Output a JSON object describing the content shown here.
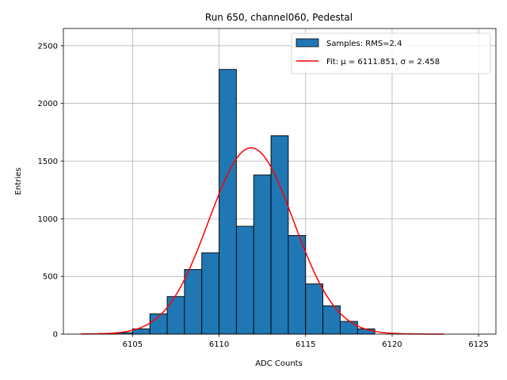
{
  "chart_data": {
    "type": "bar",
    "title": "Run 650, channel060, Pedestal",
    "xlabel": "ADC Counts",
    "ylabel": "Entries",
    "xlim": [
      6101,
      6126
    ],
    "ylim": [
      0,
      2650
    ],
    "xticks": [
      6105,
      6110,
      6115,
      6120,
      6125
    ],
    "yticks": [
      0,
      500,
      1000,
      1500,
      2000,
      2500
    ],
    "grid": true,
    "legend_position": "top-right",
    "histogram": {
      "name": "Samples: RMS=2.4",
      "color": "#1f77b4",
      "bin_edges": [
        6103,
        6104,
        6105,
        6106,
        6107,
        6108,
        6109,
        6110,
        6111,
        6112,
        6113,
        6114,
        6115,
        6116,
        6117,
        6118,
        6119
      ],
      "values": [
        5,
        12,
        45,
        175,
        325,
        560,
        705,
        2295,
        935,
        1380,
        1720,
        855,
        435,
        245,
        110,
        45
      ]
    },
    "fit": {
      "name": "Fit: μ = 6111.851, σ = 2.458",
      "color": "#ff0000",
      "mu": 6111.851,
      "sigma": 2.458,
      "amplitude": 1615,
      "x_range": [
        6102,
        6123
      ]
    }
  }
}
